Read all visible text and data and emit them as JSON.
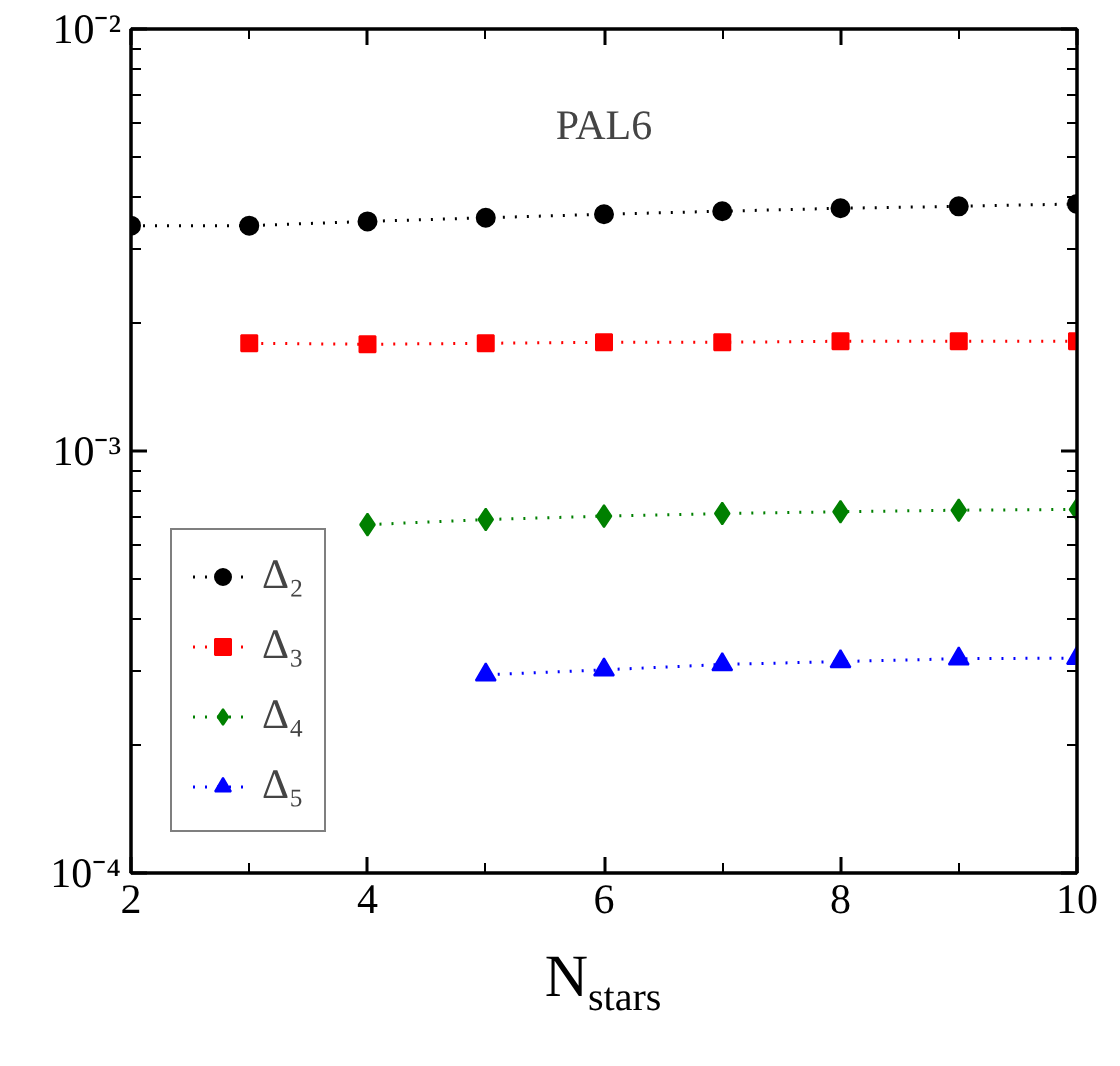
{
  "chart_data": {
    "type": "line",
    "title": "PAL6",
    "xlabel": "N$_{stars}$",
    "log": "y",
    "legend": "bottom left",
    "grid": false,
    "line_style": "dotted",
    "xlim": [
      2,
      10
    ],
    "xticks": [
      2,
      4,
      6,
      8,
      10
    ],
    "ylim": [
      0.0001,
      0.01
    ],
    "yticks": [
      {
        "value": 0.0001,
        "label": "10⁻⁴"
      },
      {
        "value": 0.001,
        "label": "10⁻³"
      },
      {
        "value": 0.01,
        "label": "10⁻²"
      }
    ],
    "series": [
      {
        "name": "Δ₂",
        "color": "#000000",
        "marker": "circle",
        "x": [
          2,
          3,
          4,
          5,
          6,
          7,
          8,
          9,
          10
        ],
        "values": [
          0.00342,
          0.00342,
          0.0035,
          0.00357,
          0.00364,
          0.0037,
          0.00376,
          0.0038,
          0.00385
        ]
      },
      {
        "name": "Δ₃",
        "color": "#ff0000",
        "marker": "square",
        "x": [
          3,
          4,
          5,
          6,
          7,
          8,
          9,
          10
        ],
        "values": [
          0.0018,
          0.00179,
          0.0018,
          0.00181,
          0.00181,
          0.00182,
          0.00182,
          0.00182
        ]
      },
      {
        "name": "Δ₄",
        "color": "#008000",
        "marker": "diamond",
        "x": [
          4,
          5,
          6,
          7,
          8,
          9,
          10
        ],
        "values": [
          0.000669,
          0.000688,
          0.000701,
          0.000711,
          0.000718,
          0.000724,
          0.000727
        ]
      },
      {
        "name": "Δ₅",
        "color": "#0000ff",
        "marker": "triangle",
        "x": [
          5,
          6,
          7,
          8,
          9,
          10
        ],
        "values": [
          0.000295,
          0.000303,
          0.000312,
          0.000317,
          0.000322,
          0.000323
        ]
      }
    ]
  }
}
